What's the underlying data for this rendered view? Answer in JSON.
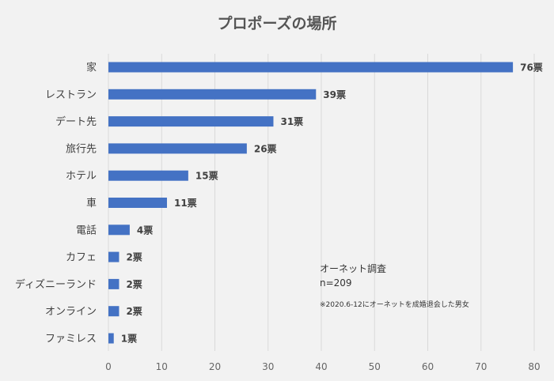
{
  "chart_data": {
    "type": "bar",
    "orientation": "horizontal",
    "title": "プロポーズの場所",
    "categories": [
      "家",
      "レストラン",
      "デート先",
      "旅行先",
      "ホテル",
      "車",
      "電話",
      "カフェ",
      "ディズニーランド",
      "オンライン",
      "ファミレス"
    ],
    "values": [
      76,
      39,
      31,
      26,
      15,
      11,
      4,
      2,
      2,
      2,
      1
    ],
    "value_labels": [
      "76票",
      "39票",
      "31票",
      "26票",
      "15票",
      "11票",
      "4票",
      "2票",
      "2票",
      "2票",
      "1票"
    ],
    "xlim": [
      0,
      80
    ],
    "xticks": [
      "0",
      "10",
      "20",
      "30",
      "40",
      "50",
      "60",
      "70",
      "80"
    ],
    "xlabel": "",
    "ylabel": "",
    "grid": true,
    "bar_color": "#4472c4"
  },
  "notes": {
    "source": "オーネット調査",
    "sample": "n=209",
    "footnote": "※2020.6-12にオーネットを成婚退会した男女"
  }
}
